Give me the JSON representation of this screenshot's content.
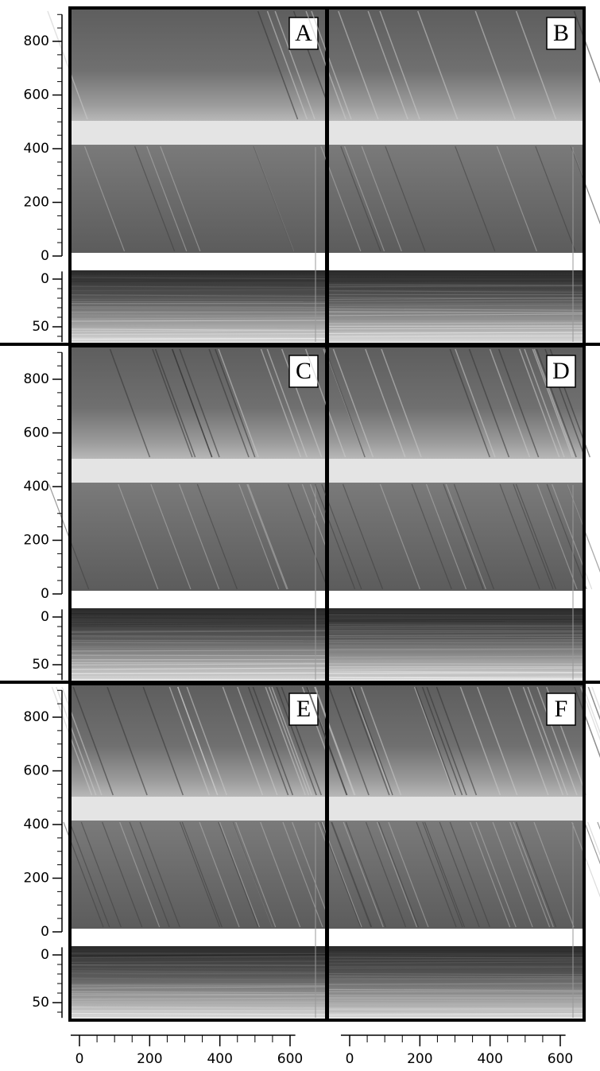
{
  "chart_data": {
    "type": "image-grid",
    "panels": [
      "A",
      "B",
      "C",
      "D",
      "E",
      "F"
    ],
    "upper_axis": {
      "ylim": [
        0,
        900
      ],
      "yticks": [
        0,
        200,
        400,
        600,
        800
      ],
      "yminor": [
        50,
        100,
        150,
        250,
        300,
        350,
        450,
        500,
        550,
        650,
        700,
        750,
        850,
        900
      ]
    },
    "lower_axis": {
      "ylim": [
        -8,
        66
      ],
      "yticks": [
        0,
        50
      ],
      "yminor": [
        10,
        20,
        30,
        40,
        60
      ],
      "inverted": true
    },
    "x_axis": {
      "xlim": [
        -25,
        615
      ],
      "xticks": [
        0,
        200,
        400,
        600
      ],
      "xminor": [
        50,
        100,
        150,
        250,
        300,
        350,
        450,
        500,
        550
      ]
    }
  }
}
